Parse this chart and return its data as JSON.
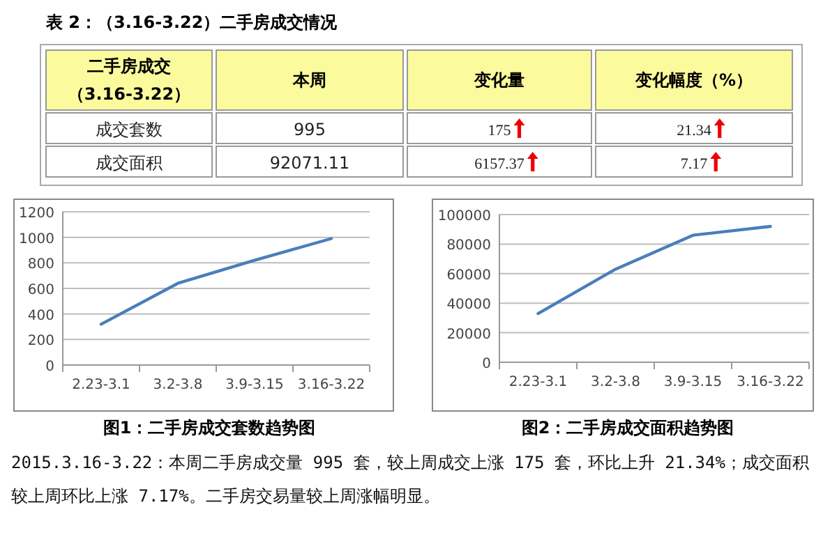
{
  "chart_data": [
    {
      "type": "other",
      "title": "表 2：（3.16-3.22）二手房成交情况",
      "categories": [
        "二手房成交（3.16-3.22）",
        "本周",
        "变化量",
        "变化幅度（%）"
      ],
      "y_categories": [
        "成交套数",
        "成交面积"
      ],
      "cell_labels": [
        [
          "995",
          "175",
          "21.34"
        ],
        [
          "92071.11",
          "6157.37",
          "7.17"
        ]
      ]
    },
    {
      "type": "line",
      "title": "图1：二手房成交套数趋势图",
      "categories": [
        "2.23-3.1",
        "3.2-3.8",
        "3.9-3.15",
        "3.16-3.22"
      ],
      "series": [
        {
          "color": "#4a7ebb",
          "values": [
            320,
            640,
            820,
            990
          ]
        }
      ],
      "ylim": [
        0,
        1200
      ],
      "yticks": [
        0,
        200,
        400,
        600,
        800,
        1000,
        1200
      ],
      "grid": "y"
    },
    {
      "type": "line",
      "title": "图2：二手房成交面积趋势图",
      "categories": [
        "2.23-3.1",
        "3.2-3.8",
        "3.9-3.15",
        "3.16-3.22"
      ],
      "series": [
        {
          "color": "#4a7ebb",
          "values": [
            33000,
            63000,
            86000,
            92000
          ]
        }
      ],
      "ylim": [
        0,
        100000
      ],
      "yticks": [
        0,
        20000,
        40000,
        60000,
        80000,
        100000
      ],
      "grid": "y"
    },
    {
      "type": "other",
      "annotations": [
        "2015.3.16-3.22：本周二手房成交量 995 套，较上周成交上涨 175 套，环比上升 21.34%；成交面积较上周环比上涨 7.17%。二手房交易量较上周涨幅明显。"
      ]
    }
  ]
}
